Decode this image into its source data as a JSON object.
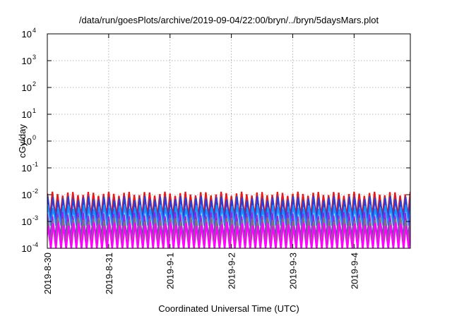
{
  "chart_data": {
    "type": "line",
    "title": "/data/run/goesPlots/archive/2019-09-04/22:00/bryn/../bryn/5daysMars.plot",
    "xlabel": "Coordinated Universal Time (UTC)",
    "ylabel": "cGy/day",
    "yscale": "log",
    "ylim": [
      0.0001,
      10000
    ],
    "xlim": [
      "2019-08-30T00:00",
      "2019-09-04T22:00"
    ],
    "grid": true,
    "y_ticks": [
      {
        "base": "10",
        "exp": "-4",
        "value": 0.0001
      },
      {
        "base": "10",
        "exp": "-3",
        "value": 0.001
      },
      {
        "base": "10",
        "exp": "-2",
        "value": 0.01
      },
      {
        "base": "10",
        "exp": "-1",
        "value": 0.1
      },
      {
        "base": "10",
        "exp": "0",
        "value": 1
      },
      {
        "base": "10",
        "exp": "1",
        "value": 10
      },
      {
        "base": "10",
        "exp": "2",
        "value": 100
      },
      {
        "base": "10",
        "exp": "3",
        "value": 1000
      },
      {
        "base": "10",
        "exp": "4",
        "value": 10000
      }
    ],
    "x_ticks": [
      {
        "label": "2019-8-30",
        "value": "2019-08-30T00:00"
      },
      {
        "label": "2019-8-31",
        "value": "2019-08-31T00:00"
      },
      {
        "label": "2019-9-1",
        "value": "2019-09-01T00:00"
      },
      {
        "label": "2019-9-2",
        "value": "2019-09-02T00:00"
      },
      {
        "label": "2019-9-3",
        "value": "2019-09-03T00:00"
      },
      {
        "label": "2019-9-4",
        "value": "2019-09-04T00:00"
      }
    ],
    "series_pattern": {
      "description_note": "sawtooth dose-rate series, one cycle about every 2 hours",
      "cycle_hours": 2
    },
    "series": [
      {
        "color": "#e41a1c",
        "peak": 0.011,
        "trough": 0.0016
      },
      {
        "color": "#2b3fd6",
        "peak": 0.0075,
        "trough": 0.0011
      },
      {
        "color": "#1e90ff",
        "peak": 0.0035,
        "trough": 0.0007
      },
      {
        "color": "#8a2be2",
        "peak": 0.0019,
        "trough": 0.00025
      },
      {
        "color": "#777777",
        "peak": 0.0012,
        "trough": 0.00015
      },
      {
        "color": "#ff00ff",
        "peak": 0.0008,
        "trough": 9e-05
      }
    ]
  }
}
